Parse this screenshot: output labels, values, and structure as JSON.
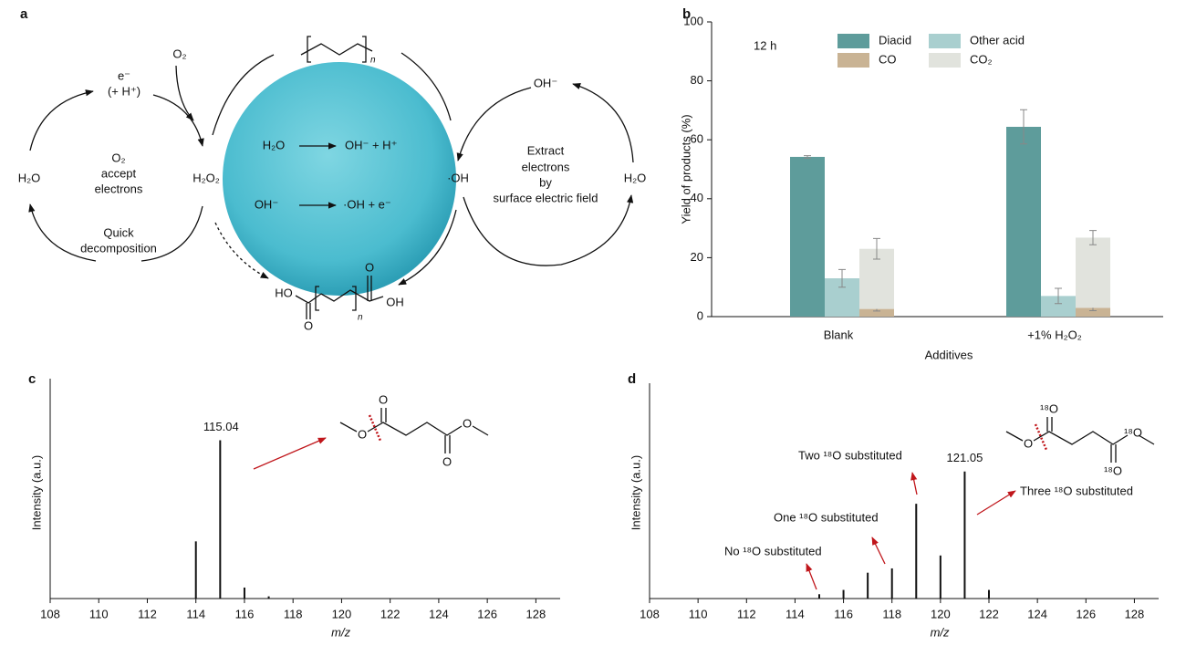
{
  "diagram": {
    "label": "a",
    "left_cycle": {
      "electron": "e⁻",
      "proton": "(+ H⁺)",
      "oxygen": "O₂",
      "water": "H₂O",
      "center": [
        "O₂",
        "accept",
        "electrons"
      ],
      "peroxide": "H₂O₂",
      "decomposition": [
        "Quick",
        "decomposition"
      ]
    },
    "sphere": {
      "reaction_1": [
        "H₂O",
        "OH⁻ + H⁺"
      ],
      "reaction_2": [
        "OH⁻",
        "·OH + e⁻"
      ]
    },
    "right_cycle": {
      "hydroxide": "OH⁻",
      "radical": "·OH",
      "water": "H₂O",
      "center": [
        "Extract",
        "electrons",
        "by",
        "surface electric field"
      ]
    },
    "polymer_repeat": "n",
    "product": {
      "left": "HO",
      "right": "OH",
      "oxygen_top": "O",
      "oxygen_bottom": "O",
      "repeat": "n"
    }
  },
  "chart_data": [
    {
      "type": "bar",
      "label": "b",
      "annotation": "12 h",
      "categories": [
        "Blank",
        "+1% H₂O₂"
      ],
      "series": [
        {
          "name": "Diacid",
          "color": "#5e9c9b",
          "values": [
            54.2,
            64.4
          ],
          "errors": [
            0.4,
            5.8
          ]
        },
        {
          "name": "Other acid",
          "color": "#a9cfcf",
          "values": [
            13,
            7
          ],
          "errors": [
            3,
            2.6
          ]
        },
        {
          "name": "CO",
          "color": "#c9b394",
          "values": [
            2.6,
            3
          ],
          "errors": [
            0.7,
            1
          ]
        },
        {
          "name": "CO₂",
          "color": "#e1e3dd",
          "values": [
            20.4,
            23.8
          ],
          "errors": [
            3.5,
            2.4
          ],
          "stacked": true
        }
      ],
      "xlabel": "Additives",
      "ylabel": "Yield of products (%)",
      "ylim": [
        0,
        100
      ],
      "yticks": [
        0,
        20,
        40,
        60,
        80,
        100
      ]
    },
    {
      "type": "spectrum",
      "label": "c",
      "x": [
        114,
        115,
        116,
        117
      ],
      "values": [
        0.26,
        0.72,
        0.05,
        0.01
      ],
      "peak_label": "115.04",
      "structure_atoms": [
        "O",
        "O",
        "O",
        "O"
      ],
      "xlabel": "m/z",
      "ylabel": "Intensity (a.u.)",
      "xlim": [
        108,
        129
      ],
      "ylim": [
        0,
        1
      ],
      "xticks": [
        108,
        110,
        112,
        114,
        116,
        118,
        120,
        122,
        124,
        126,
        128
      ]
    },
    {
      "type": "spectrum",
      "label": "d",
      "x": [
        115,
        116,
        117,
        118,
        119,
        120,
        121,
        122
      ],
      "values": [
        0.02,
        0.04,
        0.12,
        0.14,
        0.44,
        0.2,
        0.59,
        0.04
      ],
      "peak_label": "121.05",
      "annotations": [
        "No ¹⁸O substituted",
        "One ¹⁸O substituted",
        "Two ¹⁸O substituted",
        "Three ¹⁸O substituted"
      ],
      "structure_atoms": [
        "¹⁸O",
        "O",
        "¹⁸O",
        "¹⁸O"
      ],
      "xlabel": "m/z",
      "ylabel": "Intensity (a.u.)",
      "xlim": [
        108,
        129
      ],
      "ylim": [
        0,
        1
      ],
      "xticks": [
        108,
        110,
        112,
        114,
        116,
        118,
        120,
        122,
        124,
        126,
        128
      ]
    }
  ]
}
